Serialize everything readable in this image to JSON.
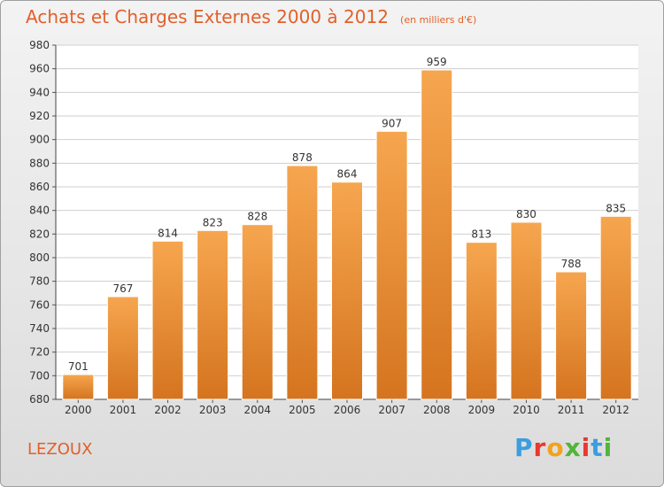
{
  "title": "Achats et Charges Externes 2000 à 2012",
  "unit_note": "(en milliers d'€)",
  "commune": "LEZOUX",
  "logo": {
    "letters": [
      "P",
      "r",
      "o",
      "x",
      "i",
      "t",
      "i"
    ],
    "colors": [
      "#3a9ee0",
      "#e8392f",
      "#f2a21c",
      "#52b53a",
      "#e8392f",
      "#3a9ee0",
      "#52b53a"
    ]
  },
  "colors": {
    "bar_top": "#f6a64f",
    "bar_bottom": "#d5741f",
    "title": "#e2602a",
    "grid": "#cfcfcf"
  },
  "chart_data": {
    "type": "bar",
    "title": "Achats et Charges Externes 2000 à 2012",
    "categories": [
      "2000",
      "2001",
      "2002",
      "2003",
      "2004",
      "2005",
      "2006",
      "2007",
      "2008",
      "2009",
      "2010",
      "2011",
      "2012"
    ],
    "values": [
      701,
      767,
      814,
      823,
      828,
      878,
      864,
      907,
      959,
      813,
      830,
      788,
      835
    ],
    "ylim": [
      680,
      980
    ],
    "yticks": [
      680,
      700,
      720,
      740,
      760,
      780,
      800,
      820,
      840,
      860,
      880,
      900,
      920,
      940,
      960,
      980
    ],
    "grid": true,
    "xlabel": "",
    "ylabel": ""
  }
}
